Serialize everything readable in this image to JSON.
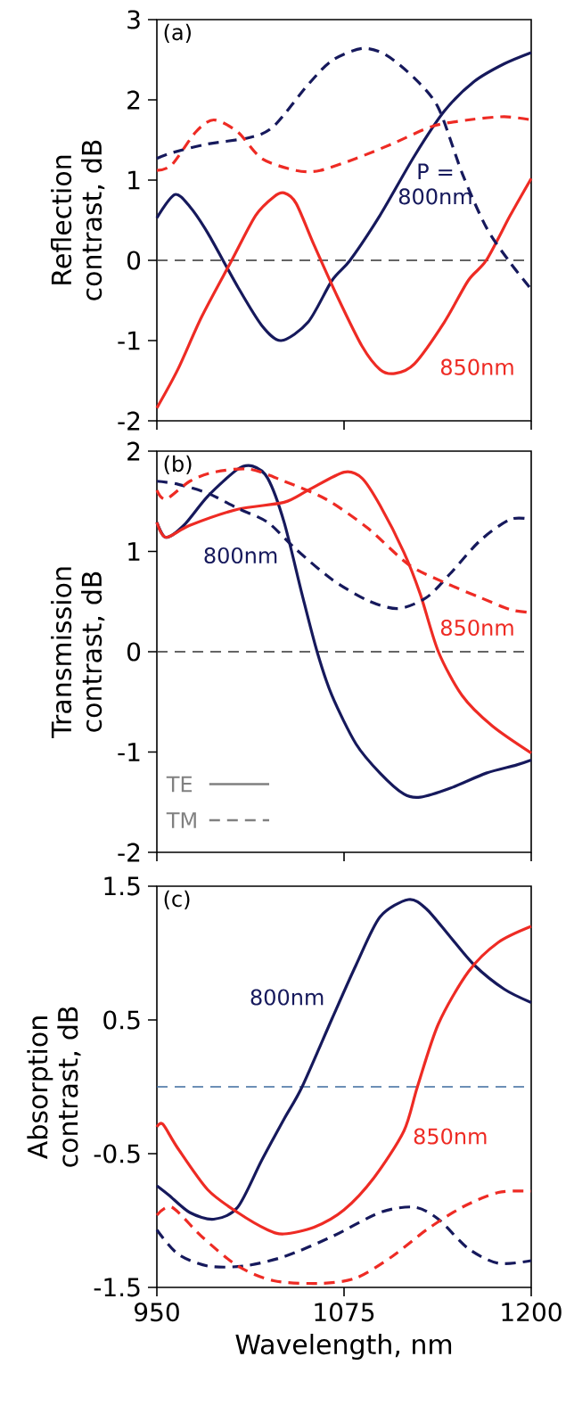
{
  "chart_data": [
    {
      "type": "line",
      "ylabel": "Reflection contrast, dB",
      "xlim": [
        950,
        1200
      ],
      "xticks": [
        950,
        1075,
        1200
      ],
      "ylim": [
        -2,
        3
      ],
      "yticks": [
        -2,
        -1,
        0,
        1,
        2,
        3
      ],
      "tick_labels": "y",
      "ref_lines": [
        {
          "axis": "y",
          "value": 0,
          "color": "#333333",
          "line_style": "dashed"
        }
      ],
      "annotations": [
        "(a)"
      ],
      "series": [
        {
          "name": "P = 800nm",
          "color": "#16195c",
          "line_style": "solid",
          "x": [
            950,
            962,
            972,
            984,
            1004,
            1020,
            1033,
            1051,
            1067,
            1079,
            1099,
            1122,
            1142,
            1162,
            1182,
            1200
          ],
          "values": [
            0.53,
            0.82,
            0.67,
            0.34,
            -0.33,
            -0.81,
            -1.0,
            -0.77,
            -0.25,
            0,
            0.56,
            1.3,
            1.86,
            2.23,
            2.45,
            2.59
          ]
        },
        {
          "name": "850nm",
          "color": "#ee2b24",
          "line_style": "solid",
          "x": [
            950,
            964,
            980,
            1000,
            1016,
            1028,
            1035,
            1043,
            1055,
            1071,
            1087,
            1099,
            1109,
            1122,
            1142,
            1158,
            1170,
            1186,
            1200
          ],
          "values": [
            -1.84,
            -1.36,
            -0.7,
            0,
            0.56,
            0.79,
            0.84,
            0.71,
            0.19,
            -0.47,
            -1.07,
            -1.36,
            -1.41,
            -1.29,
            -0.77,
            -0.25,
            0,
            0.56,
            1.02
          ]
        },
        {
          "color": "#16195c",
          "line_style": "dashed",
          "x": [
            950,
            960,
            984,
            1012,
            1028,
            1051,
            1067,
            1087,
            1103,
            1122,
            1138,
            1154,
            1170,
            1186,
            1200
          ],
          "values": [
            1.27,
            1.34,
            1.45,
            1.53,
            1.67,
            2.19,
            2.49,
            2.64,
            2.56,
            2.27,
            1.9,
            1.08,
            0.41,
            -0.03,
            -0.36
          ]
        },
        {
          "color": "#ee2b24",
          "line_style": "dashed",
          "x": [
            950,
            960,
            976,
            988,
            1004,
            1020,
            1043,
            1059,
            1083,
            1107,
            1134,
            1158,
            1182,
            1200
          ],
          "values": [
            1.12,
            1.19,
            1.6,
            1.75,
            1.6,
            1.27,
            1.12,
            1.12,
            1.27,
            1.45,
            1.67,
            1.75,
            1.79,
            1.75
          ]
        }
      ]
    },
    {
      "type": "line",
      "ylabel": "Transmission contrast, dB",
      "xlim": [
        950,
        1200
      ],
      "xticks": [
        950,
        1075,
        1200
      ],
      "ylim": [
        -2,
        2
      ],
      "yticks": [
        -2,
        -1,
        0,
        1,
        2
      ],
      "tick_labels": "y",
      "ref_lines": [
        {
          "axis": "y",
          "value": 0,
          "color": "#333333",
          "line_style": "dashed"
        }
      ],
      "annotations": [
        "(b)",
        "TE",
        "TM"
      ],
      "series": [
        {
          "name": "800nm",
          "color": "#16195c",
          "line_style": "solid",
          "x": [
            950,
            956,
            968,
            984,
            1004,
            1014,
            1024,
            1035,
            1047,
            1057,
            1067,
            1083,
            1099,
            1115,
            1126,
            1146,
            1170,
            1190,
            1200
          ],
          "values": [
            1.29,
            1.14,
            1.26,
            1.55,
            1.82,
            1.85,
            1.73,
            1.29,
            0.57,
            0,
            -0.44,
            -0.92,
            -1.21,
            -1.42,
            -1.45,
            -1.36,
            -1.21,
            -1.13,
            -1.08
          ]
        },
        {
          "name": "850nm",
          "color": "#ee2b24",
          "line_style": "solid",
          "x": [
            950,
            956,
            972,
            1004,
            1035,
            1051,
            1075,
            1087,
            1099,
            1115,
            1126,
            1138,
            1154,
            1174,
            1200
          ],
          "values": [
            1.29,
            1.14,
            1.26,
            1.42,
            1.49,
            1.61,
            1.79,
            1.73,
            1.46,
            0.99,
            0.57,
            0,
            -0.44,
            -0.74,
            -1.01
          ]
        },
        {
          "color": "#16195c",
          "line_style": "dashed",
          "x": [
            950,
            964,
            984,
            1004,
            1024,
            1043,
            1067,
            1091,
            1111,
            1130,
            1146,
            1166,
            1186,
            1200
          ],
          "values": [
            1.7,
            1.67,
            1.58,
            1.43,
            1.29,
            1.02,
            0.72,
            0.51,
            0.43,
            0.54,
            0.78,
            1.11,
            1.32,
            1.32
          ]
        },
        {
          "color": "#ee2b24",
          "line_style": "dashed",
          "x": [
            950,
            956,
            972,
            988,
            1012,
            1035,
            1063,
            1091,
            1118,
            1142,
            1166,
            1186,
            1200
          ],
          "values": [
            1.61,
            1.52,
            1.7,
            1.79,
            1.82,
            1.7,
            1.52,
            1.23,
            0.87,
            0.69,
            0.54,
            0.42,
            0.39
          ]
        }
      ]
    },
    {
      "type": "line",
      "xlabel": "Wavelength, nm",
      "ylabel": "Absorption contrast, dB",
      "xlim": [
        950,
        1200
      ],
      "xticks": [
        950,
        1075,
        1200
      ],
      "ylim": [
        -1.5,
        1.5
      ],
      "yticks": [
        -1.5,
        -0.5,
        0.5,
        1.5
      ],
      "ref_lines": [
        {
          "axis": "y",
          "value": 0,
          "color": "#3d6b9e",
          "line_style": "dashed"
        }
      ],
      "annotations": [
        "(c)"
      ],
      "series": [
        {
          "name": "800nm",
          "color": "#16195c",
          "line_style": "solid",
          "x": [
            950,
            958,
            972,
            988,
            1004,
            1020,
            1035,
            1047,
            1067,
            1083,
            1099,
            1118,
            1130,
            1146,
            1162,
            1182,
            1200
          ],
          "values": [
            -0.74,
            -0.81,
            -0.94,
            -0.99,
            -0.9,
            -0.55,
            -0.24,
            0,
            0.51,
            0.91,
            1.27,
            1.4,
            1.33,
            1.12,
            0.91,
            0.73,
            0.63
          ]
        },
        {
          "name": "850nm",
          "color": "#ee2b24",
          "line_style": "solid",
          "x": [
            950,
            954,
            964,
            984,
            1004,
            1024,
            1035,
            1055,
            1075,
            1095,
            1115,
            1124,
            1138,
            1158,
            1178,
            1200
          ],
          "values": [
            -0.3,
            -0.28,
            -0.46,
            -0.77,
            -0.94,
            -1.07,
            -1.1,
            -1.05,
            -0.92,
            -0.68,
            -0.33,
            0,
            0.47,
            0.86,
            1.08,
            1.2
          ]
        },
        {
          "color": "#16195c",
          "line_style": "dashed",
          "x": [
            950,
            964,
            984,
            1008,
            1035,
            1067,
            1099,
            1122,
            1138,
            1158,
            1178,
            1200
          ],
          "values": [
            -1.07,
            -1.25,
            -1.34,
            -1.34,
            -1.27,
            -1.12,
            -0.94,
            -0.9,
            -0.99,
            -1.21,
            -1.32,
            -1.3
          ]
        },
        {
          "color": "#ee2b24",
          "line_style": "dashed",
          "x": [
            950,
            960,
            980,
            1004,
            1028,
            1059,
            1083,
            1107,
            1130,
            1154,
            1178,
            1200
          ],
          "values": [
            -0.96,
            -0.9,
            -1.12,
            -1.34,
            -1.45,
            -1.47,
            -1.43,
            -1.27,
            -1.07,
            -0.9,
            -0.79,
            -0.78
          ]
        }
      ]
    }
  ]
}
